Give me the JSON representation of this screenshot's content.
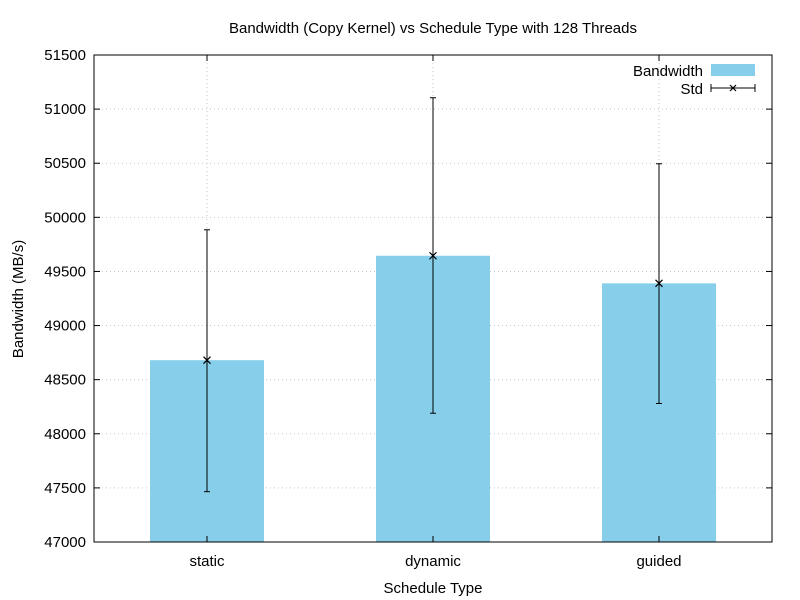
{
  "chart_data": {
    "type": "bar",
    "title": "Bandwidth (Copy Kernel) vs Schedule Type with 128 Threads",
    "xlabel": "Schedule Type",
    "ylabel": "Bandwidth (MB/s)",
    "categories": [
      "static",
      "dynamic",
      "guided"
    ],
    "series": [
      {
        "name": "Bandwidth",
        "values": [
          48680,
          49645,
          49390
        ],
        "color": "#87ceeb"
      }
    ],
    "error_bars": {
      "name": "Std",
      "center": [
        48680,
        49645,
        49390
      ],
      "low": [
        47465,
        48190,
        48280
      ],
      "high": [
        49885,
        51105,
        50495
      ],
      "color": "#000000"
    },
    "ylim": [
      47000,
      51500
    ],
    "yticks": [
      47000,
      47500,
      48000,
      48500,
      49000,
      49500,
      50000,
      50500,
      51000,
      51500
    ],
    "grid": true,
    "legend_position": "top-right"
  }
}
